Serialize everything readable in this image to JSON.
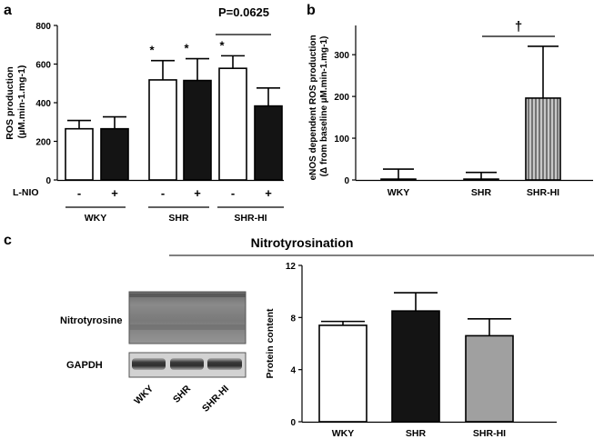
{
  "chart_data": [
    {
      "panel": "a",
      "type": "bar",
      "ylabel": "ROS production (µM.min-1.mg-1)",
      "ylim": [
        0,
        800
      ],
      "yticks": [
        "0",
        "200",
        "400",
        "600",
        "800"
      ],
      "categories": [
        "WKY -",
        "WKY +",
        "SHR -",
        "SHR +",
        "SHR-HI -",
        "SHR-HI +"
      ],
      "values": [
        265,
        265,
        518,
        515,
        578,
        383
      ],
      "errors": [
        43,
        62,
        100,
        113,
        65,
        93
      ],
      "fills": [
        "white",
        "black",
        "white",
        "black",
        "white",
        "black"
      ],
      "star_labels": [
        "",
        "",
        "*",
        "*",
        "*",
        ""
      ],
      "row_label": "L-NIO",
      "signs": [
        "-",
        "+",
        "-",
        "+",
        "-",
        "+"
      ],
      "groups": [
        "WKY",
        "SHR",
        "SHR-HI"
      ],
      "annotation": "P=0.0625"
    },
    {
      "panel": "b",
      "type": "bar",
      "ylabel_line1": "eNOS dependent ROS production",
      "ylabel_line2": "(Δ from baseline µM.min-1.mg-1)",
      "ylim": [
        0,
        370
      ],
      "yticks": [
        "0",
        "100",
        "200",
        "300"
      ],
      "categories": [
        "WKY",
        "SHR",
        "SHR-HI"
      ],
      "values": [
        2,
        2,
        196
      ],
      "errors": [
        24,
        16,
        124
      ],
      "fills": [
        "white",
        "white",
        "hatched"
      ],
      "annotation": "†"
    },
    {
      "panel": "c",
      "type": "bar",
      "title": "Nitrotyrosination",
      "ylabel": "Protein content",
      "ylim": [
        0,
        12
      ],
      "yticks": [
        "0",
        "4",
        "8",
        "12"
      ],
      "categories": [
        "WKY",
        "SHR",
        "SHR-HI"
      ],
      "values": [
        7.4,
        8.5,
        6.6
      ],
      "errors": [
        0.3,
        1.4,
        1.3
      ],
      "colors": [
        "#ffffff",
        "#141414",
        "#a0a0a0"
      ]
    }
  ],
  "blot": {
    "panel": "c",
    "band_labels": [
      "Nitrotyrosine",
      "GAPDH"
    ],
    "lanes": [
      "WKY",
      "SHR",
      "SHR-HI"
    ]
  }
}
